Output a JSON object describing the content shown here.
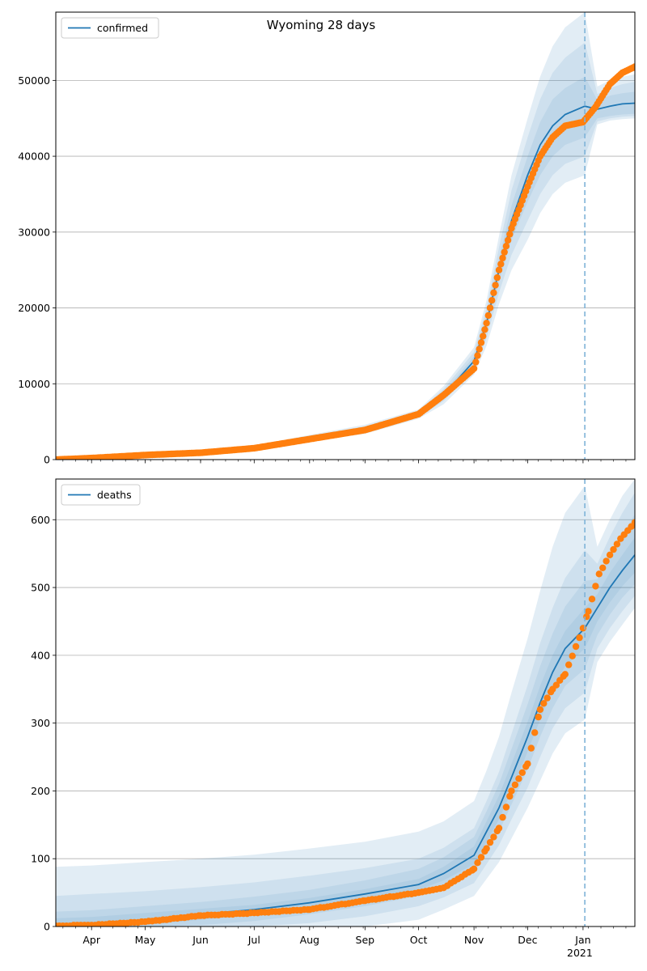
{
  "title": "Wyoming 28 days",
  "x_ticks": {
    "months": [
      "Apr",
      "May",
      "Jun",
      "Jul",
      "Aug",
      "Sep",
      "Oct",
      "Nov",
      "Dec",
      "Jan"
    ],
    "year_label": "2021"
  },
  "forecast_start": "2021-01-02",
  "colors": {
    "model": "#1f77b4",
    "band": "#1f77b4",
    "observed": "#ff7f0e",
    "grid": "#b0b0b0",
    "forecast_line": "#7fb3d8"
  },
  "chart_data": [
    {
      "type": "line",
      "name": "confirmed-panel",
      "legend": "confirmed",
      "legend_position": "top-left",
      "x_range": [
        "2020-03-12",
        "2021-01-30"
      ],
      "ylim": [
        0,
        59000
      ],
      "yticks": [
        0,
        10000,
        20000,
        30000,
        40000,
        50000
      ],
      "grid": "horizontal",
      "model": {
        "dates": [
          "2020-03-12",
          "2020-04-01",
          "2020-05-01",
          "2020-06-01",
          "2020-07-01",
          "2020-08-01",
          "2020-09-01",
          "2020-10-01",
          "2020-10-15",
          "2020-11-01",
          "2020-11-08",
          "2020-11-15",
          "2020-11-22",
          "2020-12-01",
          "2020-12-08",
          "2020-12-15",
          "2020-12-22",
          "2021-01-02",
          "2021-01-09",
          "2021-01-16",
          "2021-01-23",
          "2021-01-30"
        ],
        "values": [
          0,
          300,
          700,
          1000,
          1700,
          2800,
          4000,
          6000,
          8500,
          13000,
          18000,
          25000,
          31500,
          37500,
          41500,
          44000,
          45500,
          46600,
          46200,
          46600,
          46900,
          47000
        ],
        "bands": [
          {
            "lower": [
              0,
              300,
              700,
              1000,
              1650,
              2650,
              3800,
              5800,
              8100,
              12400,
              17000,
              23500,
              29000,
              34000,
              37500,
              40000,
              41500,
              42500,
              45000,
              45300,
              45500,
              45600
            ],
            "upper": [
              0,
              300,
              700,
              1000,
              1750,
              2950,
              4200,
              6200,
              8900,
              13600,
              19000,
              26500,
              33500,
              40000,
              44500,
              47500,
              49000,
              50500,
              47400,
              48000,
              48300,
              48500
            ]
          },
          {
            "lower": [
              0,
              300,
              700,
              1000,
              1600,
              2500,
              3600,
              5600,
              7700,
              11800,
              16000,
              22000,
              27000,
              31500,
              35000,
              37500,
              39000,
              40000,
              44600,
              45000,
              45200,
              45300
            ],
            "upper": [
              0,
              300,
              700,
              1000,
              1800,
              3100,
              4400,
              6400,
              9300,
              14200,
              20000,
              28000,
              35500,
              42500,
              47500,
              51000,
              53000,
              55000,
              48200,
              49000,
              49500,
              49800
            ]
          },
          {
            "lower": [
              0,
              300,
              700,
              1000,
              1550,
              2400,
              3400,
              5400,
              7300,
              11200,
              15000,
              20500,
              25000,
              29000,
              32500,
              35000,
              36500,
              37500,
              44200,
              44700,
              44900,
              45000
            ],
            "upper": [
              0,
              300,
              700,
              1000,
              1850,
              3250,
              4600,
              6600,
              9700,
              14800,
              21000,
              29500,
              37500,
              45000,
              50500,
              54500,
              57000,
              59000,
              49200,
              50000,
              50500,
              50800
            ]
          }
        ]
      },
      "observed": {
        "dates": [
          "2020-03-12",
          "2020-04-01",
          "2020-05-01",
          "2020-06-01",
          "2020-07-01",
          "2020-08-01",
          "2020-09-01",
          "2020-10-01",
          "2020-10-15",
          "2020-11-01",
          "2020-11-08",
          "2020-11-15",
          "2020-11-22",
          "2020-12-01",
          "2020-12-08",
          "2020-12-15",
          "2020-12-22",
          "2021-01-01",
          "2021-01-08",
          "2021-01-16",
          "2021-01-23",
          "2021-01-30"
        ],
        "values": [
          0,
          200,
          600,
          900,
          1500,
          2700,
          3900,
          6000,
          8500,
          12000,
          18000,
          25000,
          30500,
          36000,
          40000,
          42500,
          44000,
          44500,
          46500,
          49500,
          51000,
          51800
        ]
      }
    },
    {
      "type": "line",
      "name": "deaths-panel",
      "legend": "deaths",
      "legend_position": "top-left",
      "x_range": [
        "2020-03-12",
        "2021-01-30"
      ],
      "ylim": [
        0,
        660
      ],
      "yticks": [
        0,
        100,
        200,
        300,
        400,
        500,
        600
      ],
      "grid": "horizontal",
      "model": {
        "dates": [
          "2020-03-12",
          "2020-04-01",
          "2020-05-01",
          "2020-06-01",
          "2020-07-01",
          "2020-08-01",
          "2020-09-01",
          "2020-10-01",
          "2020-10-15",
          "2020-11-01",
          "2020-11-08",
          "2020-11-15",
          "2020-11-22",
          "2020-12-01",
          "2020-12-08",
          "2020-12-15",
          "2020-12-22",
          "2021-01-02",
          "2021-01-09",
          "2021-01-16",
          "2021-01-23",
          "2021-01-30"
        ],
        "values": [
          2,
          4,
          10,
          18,
          25,
          35,
          48,
          62,
          78,
          105,
          140,
          175,
          220,
          280,
          330,
          375,
          410,
          440,
          470,
          500,
          525,
          548
        ],
        "bands": [
          {
            "lower": [
              0,
              0,
              2,
              10,
              17,
              27,
              40,
              54,
              68,
              92,
              125,
              158,
              200,
              258,
              305,
              350,
              384,
              410,
              450,
              478,
              502,
              522
            ],
            "upper": [
              12,
              14,
              20,
              26,
              32,
              42,
              55,
              70,
              88,
              118,
              155,
              193,
              240,
              302,
              355,
              400,
              436,
              470,
              490,
              522,
              548,
              574
            ]
          },
          {
            "lower": [
              0,
              0,
              0,
              2,
              8,
              18,
              30,
              45,
              58,
              80,
              110,
              140,
              180,
              232,
              280,
              322,
              355,
              380,
              430,
              460,
              485,
              505
            ],
            "upper": [
              22,
              24,
              30,
              36,
              44,
              54,
              68,
              85,
              102,
              132,
              170,
              210,
              262,
              328,
              384,
              432,
              472,
              510,
              512,
              548,
              578,
              608
            ]
          },
          {
            "lower": [
              0,
              0,
              0,
              0,
              0,
              5,
              15,
              30,
              43,
              64,
              92,
              120,
              158,
              205,
              250,
              292,
              322,
              345,
              410,
              440,
              465,
              488
            ],
            "upper": [
              45,
              48,
              52,
              58,
              65,
              75,
              86,
              100,
              116,
              145,
              185,
              228,
              284,
              356,
              418,
              470,
              514,
              555,
              535,
              575,
              610,
              640
            ]
          },
          {
            "lower": [
              0,
              0,
              0,
              0,
              0,
              0,
              0,
              10,
              25,
              45,
              70,
              95,
              130,
              175,
              215,
              255,
              285,
              305,
              390,
              420,
              445,
              470
            ],
            "upper": [
              88,
              90,
              95,
              100,
              106,
              115,
              125,
              140,
              155,
              185,
              230,
              280,
              345,
              425,
              495,
              560,
              610,
              650,
              560,
              600,
              635,
              660
            ]
          }
        ]
      },
      "observed": {
        "dates": [
          "2020-03-12",
          "2020-04-01",
          "2020-05-01",
          "2020-06-01",
          "2020-07-01",
          "2020-08-01",
          "2020-09-01",
          "2020-10-01",
          "2020-10-15",
          "2020-11-01",
          "2020-11-08",
          "2020-11-15",
          "2020-11-22",
          "2020-12-01",
          "2020-12-08",
          "2020-12-15",
          "2020-12-22",
          "2021-01-01",
          "2021-01-04",
          "2021-01-10",
          "2021-01-16",
          "2021-01-22",
          "2021-01-30"
        ],
        "values": [
          1,
          2,
          7,
          16,
          20,
          25,
          38,
          50,
          57,
          85,
          115,
          145,
          200,
          240,
          320,
          350,
          372,
          440,
          465,
          520,
          548,
          572,
          596
        ]
      }
    }
  ]
}
